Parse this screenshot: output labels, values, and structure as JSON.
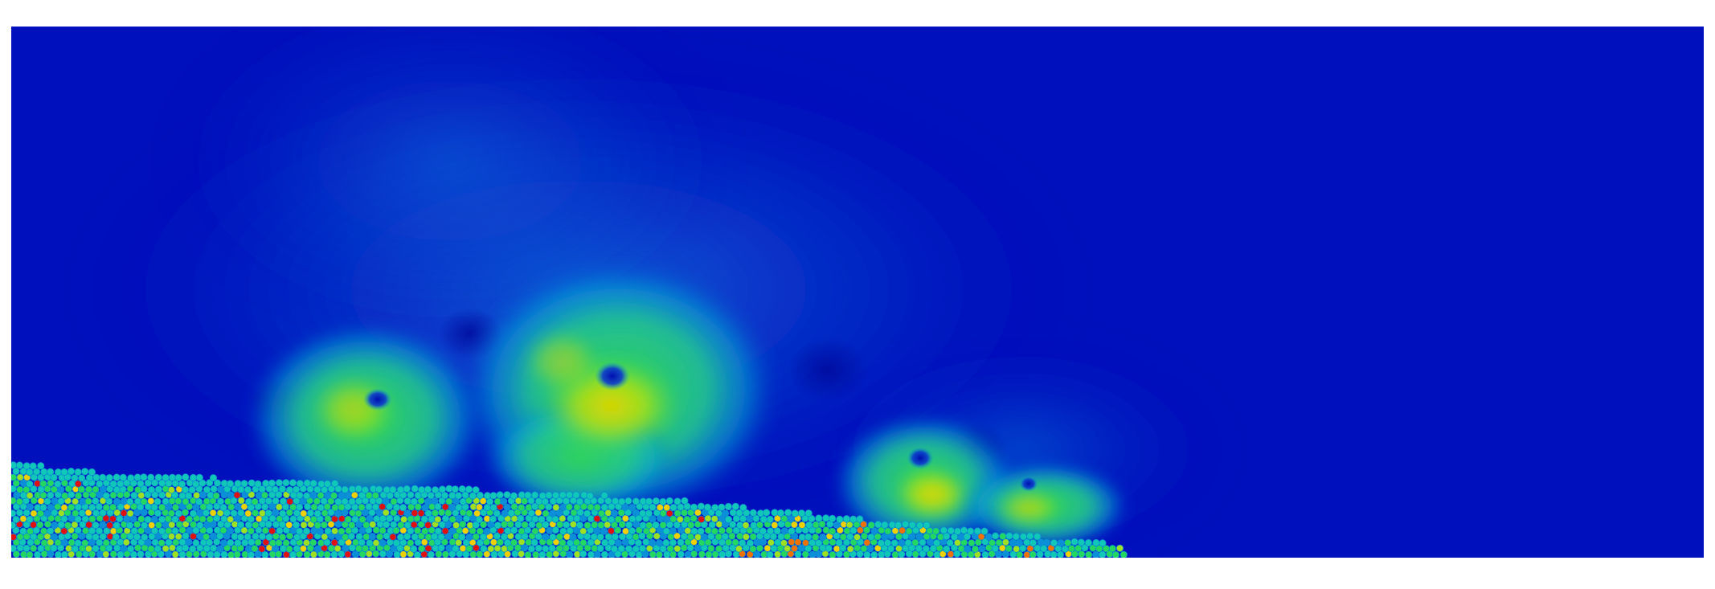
{
  "figure": {
    "background": "#ffffff",
    "colormap": [
      "#0008b8",
      "#0a40d4",
      "#0a8fd8",
      "#10c8b8",
      "#22d860",
      "#9fe020",
      "#f0d000",
      "#f07000",
      "#e01010"
    ],
    "field_base_color": "#0010bc",
    "grain_outline_color": "#0b8fcf"
  }
}
